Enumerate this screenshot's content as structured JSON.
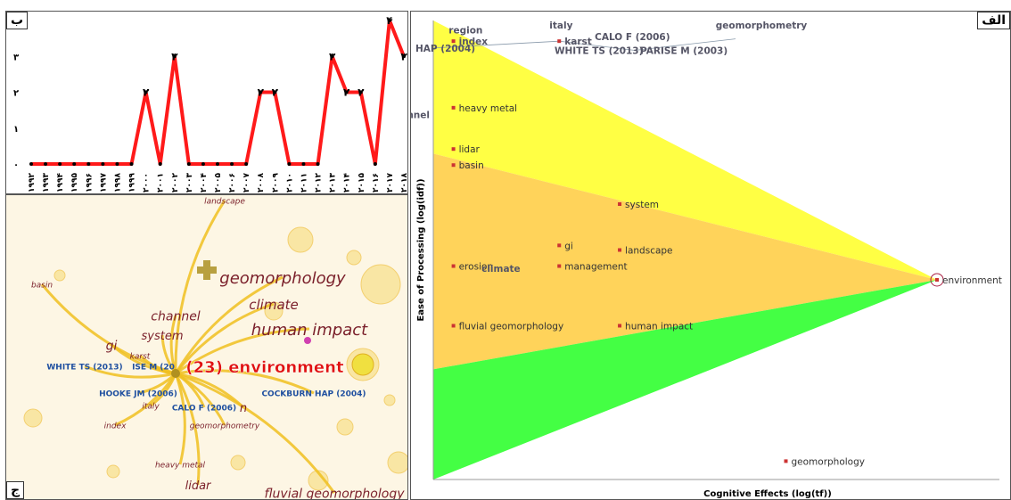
{
  "panels": {
    "alef": "الف",
    "be": "ب",
    "jim": "ج"
  },
  "colors": {
    "line": "#ff1a1a",
    "yellow_band": "#ffff44",
    "orange_band": "#ffd35a",
    "green_band": "#44ff44",
    "label_red": "#cc3333",
    "node_yellow": "#f0c020"
  },
  "chart_data": [
    {
      "type": "line",
      "panel": "ب",
      "categories": [
        "۱۹۹۲",
        "۱۹۹۳",
        "۱۹۹۴",
        "۱۹۹۵",
        "۱۹۹۶",
        "۱۹۹۷",
        "۱۹۹۸",
        "۱۹۹۹",
        "۲۰۰۰",
        "۲۰۰۱",
        "۲۰۰۲",
        "۲۰۰۳",
        "۲۰۰۴",
        "۲۰۰۵",
        "۲۰۰۶",
        "۲۰۰۷",
        "۲۰۰۸",
        "۲۰۰۹",
        "۲۰۱۰",
        "۲۰۱۱",
        "۲۰۱۲",
        "۲۰۱۳",
        "۲۰۱۴",
        "۲۰۱۵",
        "۲۰۱۶",
        "۲۰۱۷",
        "۲۰۱۸"
      ],
      "values": [
        0,
        0,
        0,
        0,
        0,
        0,
        0,
        0,
        2,
        0,
        3,
        0,
        0,
        0,
        0,
        0,
        2,
        2,
        0,
        0,
        0,
        3,
        2,
        2,
        0,
        4,
        3
      ],
      "point_labels": [
        "",
        "",
        "",
        "",
        "",
        "",
        "",
        "",
        "۲",
        "",
        "۳",
        "",
        "",
        "",
        "",
        "",
        "۲",
        "۲",
        "",
        "",
        "",
        "۳",
        "۲",
        "۲",
        "",
        "۴",
        "۳"
      ],
      "yticks": [
        "۰",
        "۱",
        "۲",
        "۳"
      ],
      "ylim": [
        0,
        4
      ]
    },
    {
      "type": "scatter",
      "panel": "الف",
      "xlabel": "Cognitive Effects (log(tf))",
      "ylabel": "Ease of Processing (log(idf))",
      "points": [
        {
          "label": "region",
          "x": 0.02,
          "y": 0.98
        },
        {
          "label": "index",
          "x": 0.04,
          "y": 0.955
        },
        {
          "label": "HAP (2004)",
          "x": 0.0,
          "y": 0.94
        },
        {
          "label": "italy",
          "x": 0.22,
          "y": 0.99
        },
        {
          "label": "karst",
          "x": 0.25,
          "y": 0.955
        },
        {
          "label": "CALO F (2006)",
          "x": 0.31,
          "y": 0.965
        },
        {
          "label": "WHITE TS (2013)",
          "x": 0.23,
          "y": 0.935
        },
        {
          "label": "PARISE M (2003)",
          "x": 0.4,
          "y": 0.935
        },
        {
          "label": "geomorphometry",
          "x": 0.55,
          "y": 0.99
        },
        {
          "label": "heavy metal",
          "x": 0.04,
          "y": 0.81
        },
        {
          "label": "channel",
          "x": 0.0,
          "y": 0.795
        },
        {
          "label": "lidar",
          "x": 0.04,
          "y": 0.72
        },
        {
          "label": "basin",
          "x": 0.04,
          "y": 0.685
        },
        {
          "label": "system",
          "x": 0.37,
          "y": 0.6
        },
        {
          "label": "gi",
          "x": 0.25,
          "y": 0.51
        },
        {
          "label": "landscape",
          "x": 0.37,
          "y": 0.5
        },
        {
          "label": "erosion",
          "x": 0.04,
          "y": 0.465
        },
        {
          "label": "climate",
          "x": 0.18,
          "y": 0.46
        },
        {
          "label": "management",
          "x": 0.25,
          "y": 0.465
        },
        {
          "label": "environment",
          "x": 1.0,
          "y": 0.435
        },
        {
          "label": "fluvial geomorphology",
          "x": 0.04,
          "y": 0.335
        },
        {
          "label": "human impact",
          "x": 0.37,
          "y": 0.335
        },
        {
          "label": "geomorphology",
          "x": 0.7,
          "y": 0.04
        }
      ]
    },
    {
      "type": "network",
      "panel": "ج",
      "nodes": [
        {
          "label": "landscape",
          "size": "small"
        },
        {
          "label": "geomorphology",
          "size": "large"
        },
        {
          "label": "basin",
          "size": "small"
        },
        {
          "label": "climate",
          "size": "medium"
        },
        {
          "label": "channel",
          "size": "medium"
        },
        {
          "label": "human impact",
          "size": "large"
        },
        {
          "label": "system",
          "size": "medium"
        },
        {
          "label": "gi",
          "size": "medium"
        },
        {
          "label": "karst",
          "size": "small"
        },
        {
          "label": "WHITE TS (2013)",
          "size": "small"
        },
        {
          "label": "ISE M (20",
          "size": "small"
        },
        {
          "label": "(23) environment",
          "size": "large"
        },
        {
          "label": "HOOKE JM (2006)",
          "size": "small"
        },
        {
          "label": "COCKBURN HAP (2004)",
          "size": "small"
        },
        {
          "label": "italy",
          "size": "small"
        },
        {
          "label": "CALO F (2006)",
          "size": "small"
        },
        {
          "label": "n",
          "size": "small"
        },
        {
          "label": "index",
          "size": "small"
        },
        {
          "label": "geomorphometry",
          "size": "small"
        },
        {
          "label": "heavy metal",
          "size": "small"
        },
        {
          "label": "lidar",
          "size": "medium"
        },
        {
          "label": "fluvial geomorphology",
          "size": "medium"
        }
      ]
    }
  ]
}
